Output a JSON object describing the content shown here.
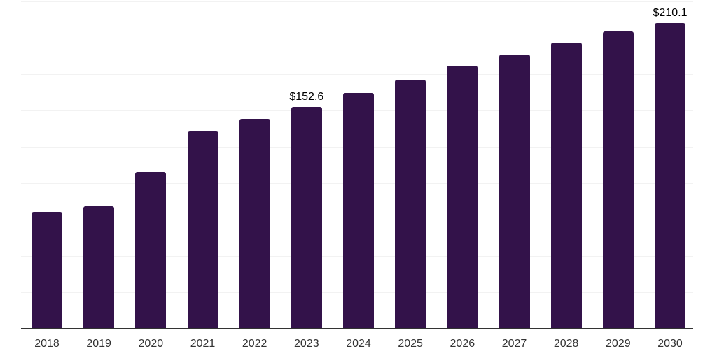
{
  "chart_data": {
    "type": "bar",
    "title": "",
    "xlabel": "",
    "ylabel": "",
    "categories": [
      "2018",
      "2019",
      "2020",
      "2021",
      "2022",
      "2023",
      "2024",
      "2025",
      "2026",
      "2027",
      "2028",
      "2029",
      "2030"
    ],
    "values": [
      80.3,
      84.2,
      107.8,
      135.7,
      144.1,
      152.6,
      162.0,
      171.3,
      180.6,
      188.4,
      196.6,
      204.2,
      210.1
    ],
    "point_labels": [
      "",
      "",
      "",
      "",
      "",
      "$152.6",
      "",
      "",
      "",
      "",
      "",
      "",
      "$210.1"
    ],
    "ylim": [
      0,
      226
    ],
    "gridline_interval": 25,
    "y_axis_labels_visible": false,
    "legend": "none",
    "colors": {
      "bar": "#33124a",
      "gridline": "#f2f2f2",
      "axis_line": "#333333",
      "tick_label": "#333333",
      "value_label": "#000000",
      "background": "#ffffff"
    }
  }
}
